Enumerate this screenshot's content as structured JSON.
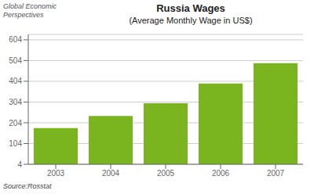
{
  "chart_data": {
    "type": "bar",
    "title": "Russia Wages",
    "subtitle": "(Average Monthly Wage in US$)",
    "categories": [
      "2003",
      "2004",
      "2005",
      "2006",
      "2007"
    ],
    "values": [
      178,
      237,
      298,
      393,
      491
    ],
    "color": "#7ab520",
    "ylim": [
      4,
      630
    ],
    "yticks": [
      4,
      104,
      204,
      304,
      404,
      504,
      604
    ],
    "grid": true,
    "annotations": [
      "Global Economic",
      "Perspectives",
      "Source:Rosstat"
    ]
  }
}
